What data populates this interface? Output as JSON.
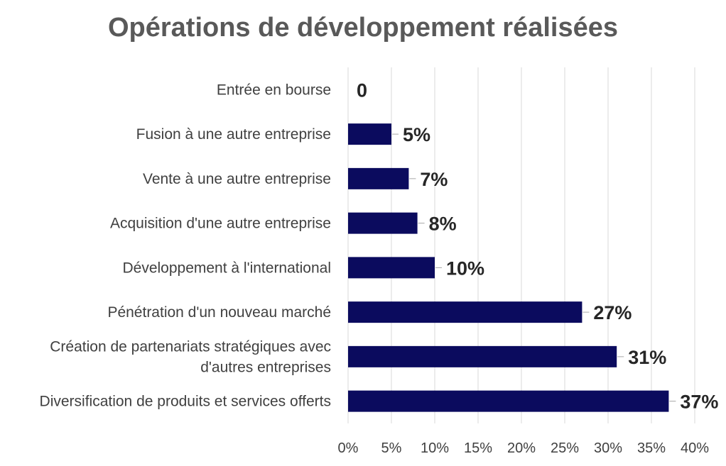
{
  "chart_data": {
    "type": "bar",
    "orientation": "horizontal",
    "title": "Opérations de développement réalisées",
    "xlabel": "",
    "ylabel": "",
    "categories": [
      [
        "Entrée en bourse"
      ],
      [
        "Fusion à une autre entreprise"
      ],
      [
        "Vente à une autre entreprise"
      ],
      [
        "Acquisition d'une autre entreprise"
      ],
      [
        "Développement à l'international"
      ],
      [
        "Pénétration d'un nouveau marché"
      ],
      [
        "Création de partenariats stratégiques avec",
        "d'autres entreprises"
      ],
      [
        "Diversification de produits et services offerts"
      ]
    ],
    "values": [
      0,
      5,
      7,
      8,
      10,
      27,
      31,
      37
    ],
    "data_labels": [
      "0",
      "5%",
      "7%",
      "8%",
      "10%",
      "27%",
      "31%",
      "37%"
    ],
    "xlim": [
      0,
      40
    ],
    "x_ticks": [
      0,
      5,
      10,
      15,
      20,
      25,
      30,
      35,
      40
    ],
    "x_tick_labels": [
      "0%",
      "5%",
      "10%",
      "15%",
      "20%",
      "25%",
      "30%",
      "35%",
      "40%"
    ],
    "grid": "vertical",
    "legend": "none",
    "colors": {
      "bar": "#0b0b5e",
      "grid": "#d9d9d9",
      "title": "#595959",
      "label": "#404040",
      "data_label": "#262626"
    }
  }
}
